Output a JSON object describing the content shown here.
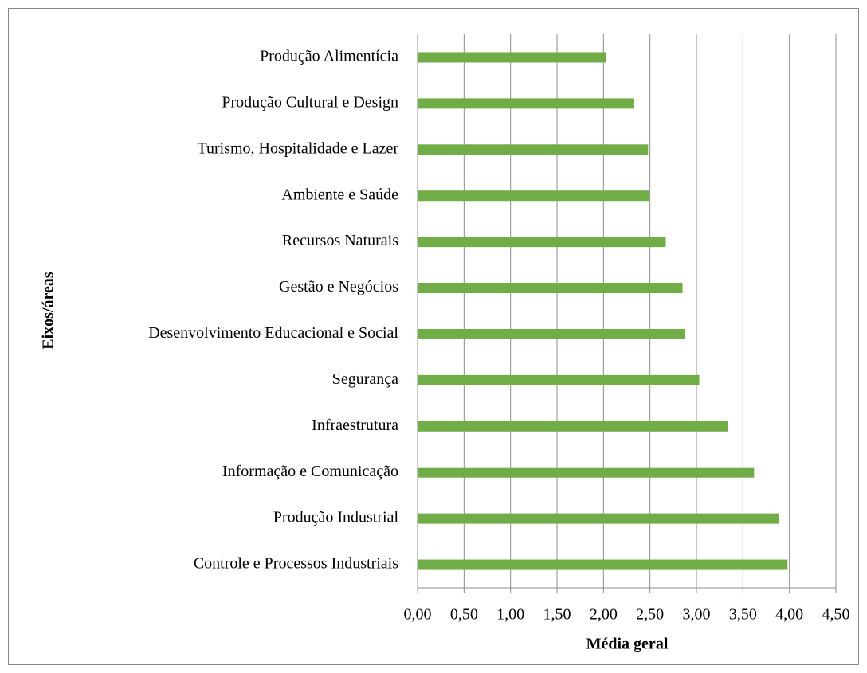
{
  "chart_data": {
    "type": "hbar",
    "x_label": "Média geral",
    "y_label": "Eixos/áreas",
    "categories": [
      "Produção Alimentícia",
      "Produção Cultural e Design",
      "Turismo, Hospitalidade e Lazer",
      "Ambiente e Saúde",
      "Recursos Naturais",
      "Gestão e Negócios",
      "Desenvolvimento Educacional e Social",
      "Segurança",
      "Infraestrutura",
      "Informação e Comunicação",
      "Produção Industrial",
      "Controle e Processos Industriais"
    ],
    "values": [
      2.03,
      2.33,
      2.48,
      2.49,
      2.67,
      2.85,
      2.88,
      3.03,
      3.34,
      3.62,
      3.89,
      3.98
    ],
    "color": "#70ad47",
    "xlim": [
      0,
      4.5
    ],
    "xticks": [
      {
        "value": 0,
        "label": "0,00"
      },
      {
        "value": 0.5,
        "label": "0,50"
      },
      {
        "value": 1,
        "label": "1,00"
      },
      {
        "value": 1.5,
        "label": "1,50"
      },
      {
        "value": 2,
        "label": "2,00"
      },
      {
        "value": 2.5,
        "label": "2,50"
      },
      {
        "value": 3,
        "label": "3,00"
      },
      {
        "value": 3.5,
        "label": "3,50"
      },
      {
        "value": 4,
        "label": "4,00"
      },
      {
        "value": 4.5,
        "label": "4,50"
      }
    ],
    "grid": true
  }
}
